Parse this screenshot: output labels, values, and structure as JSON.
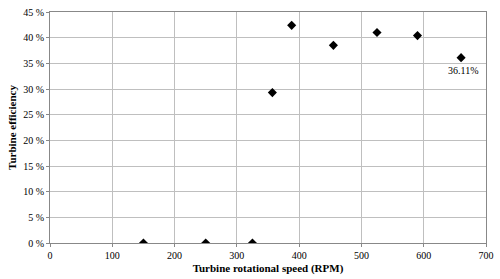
{
  "chart_data": {
    "type": "scatter",
    "x_label": "Turbine rotational speed (RPM)",
    "y_label": "Turbine efficiency",
    "x": [
      150,
      250,
      325,
      357,
      388,
      455,
      525,
      590,
      660
    ],
    "values": [
      0,
      0,
      0,
      29.3,
      42.4,
      38.5,
      41,
      40.4,
      36.11
    ],
    "color": "#000000",
    "marker": "diamond",
    "xlim": [
      0,
      700
    ],
    "xticks": [
      0,
      100,
      200,
      300,
      400,
      500,
      600,
      700
    ],
    "ylim": [
      0,
      45
    ],
    "yticks": [
      {
        "value": 0,
        "label": "0 %"
      },
      {
        "value": 5,
        "label": "5 %"
      },
      {
        "value": 10,
        "label": "10 %"
      },
      {
        "value": 15,
        "label": "15 %"
      },
      {
        "value": 20,
        "label": "20 %"
      },
      {
        "value": 25,
        "label": "25 %"
      },
      {
        "value": 30,
        "label": "30 %"
      },
      {
        "value": 35,
        "label": "35 %"
      },
      {
        "value": 40,
        "label": "40 %"
      },
      {
        "value": 45,
        "label": "45 %"
      }
    ],
    "grid": true,
    "annotations": [
      {
        "x": 660,
        "y": 36.11,
        "text": "36.11%"
      }
    ]
  }
}
